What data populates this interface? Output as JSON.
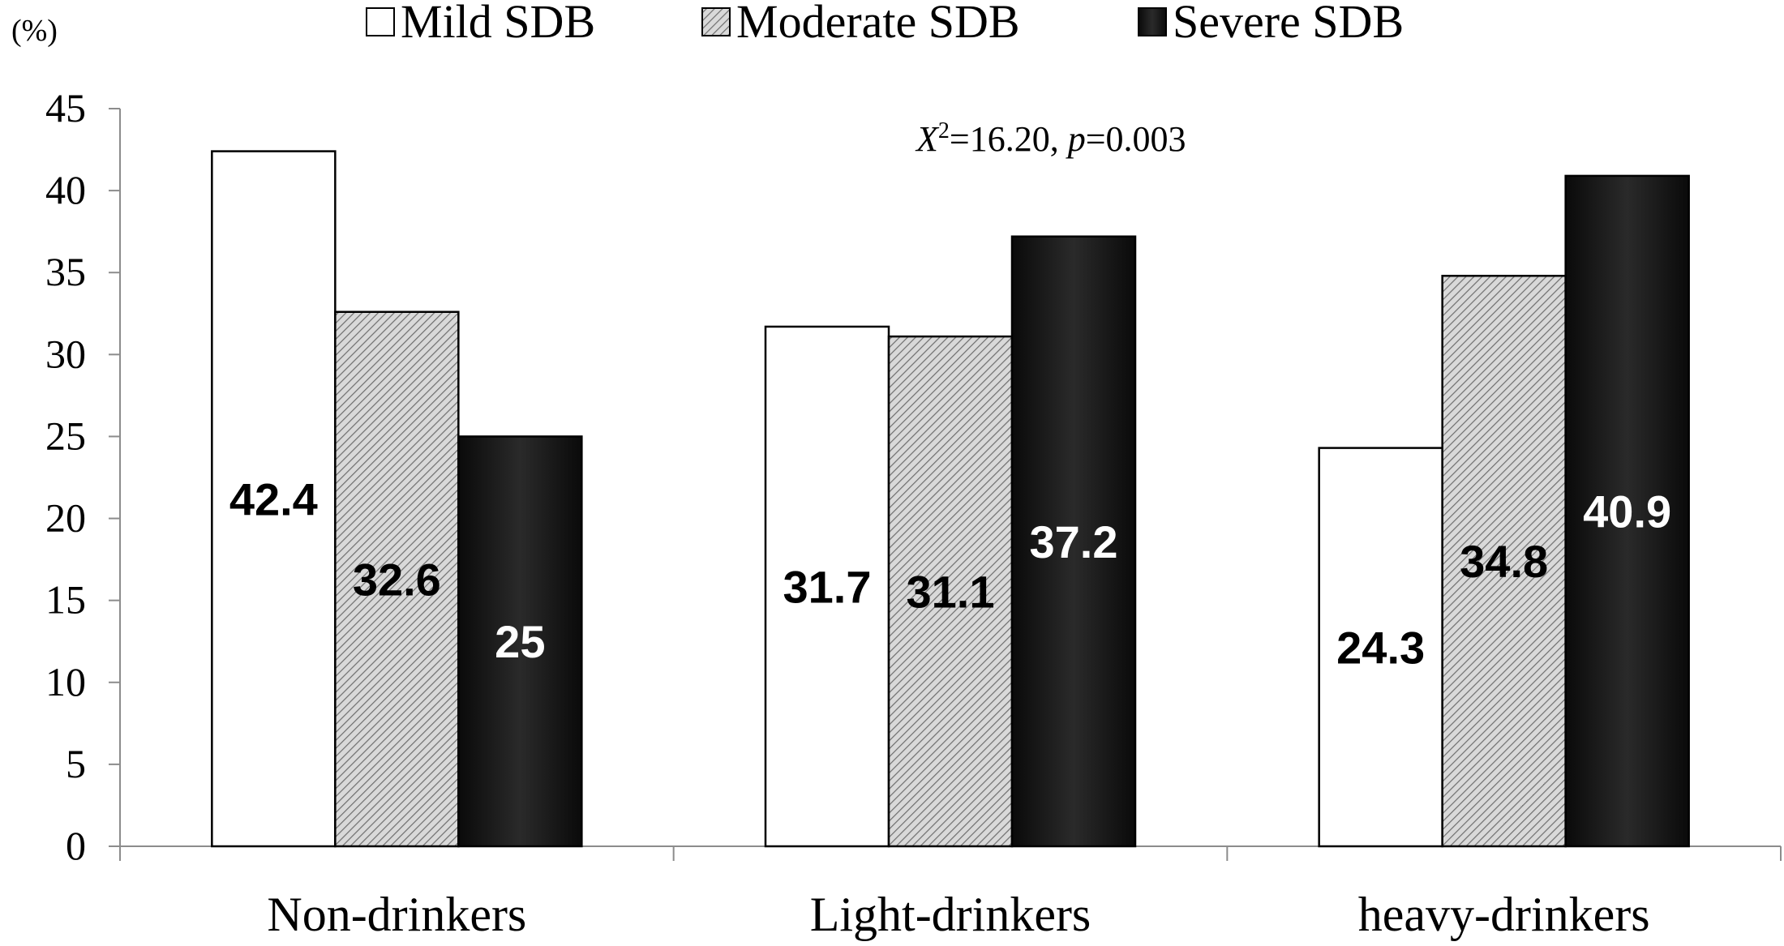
{
  "chart_data": {
    "type": "bar",
    "title": "",
    "xlabel": "",
    "ylabel": "(%)",
    "ylim": [
      0,
      45
    ],
    "yticks": [
      0,
      5,
      10,
      15,
      20,
      25,
      30,
      35,
      40,
      45
    ],
    "grid": false,
    "legend_position": "top",
    "annotation": {
      "stat_symbol": "X",
      "stat_superscript": "2",
      "stat_value": "=16.20, ",
      "p_symbol": "p",
      "p_value": "=0.003"
    },
    "categories": [
      "Non-drinkers",
      "Light-drinkers",
      "heavy-drinkers"
    ],
    "series": [
      {
        "name": "Mild SDB",
        "values": [
          42.4,
          31.7,
          24.3
        ],
        "labels": [
          "42.4",
          "31.7",
          "24.3"
        ],
        "style": "white",
        "fill_color": "#ffffff",
        "label_color": "#000000"
      },
      {
        "name": "Moderate SDB",
        "values": [
          32.6,
          31.1,
          34.8
        ],
        "labels": [
          "32.6",
          "31.1",
          "34.8"
        ],
        "style": "hatched",
        "fill_color": "#d8d8d8",
        "label_color": "#000000"
      },
      {
        "name": "Severe SDB",
        "values": [
          25,
          37.2,
          40.9
        ],
        "labels": [
          "25",
          "37.2",
          "40.9"
        ],
        "style": "dark",
        "fill_color": "#1c1c1c",
        "label_color": "#ffffff"
      }
    ]
  }
}
